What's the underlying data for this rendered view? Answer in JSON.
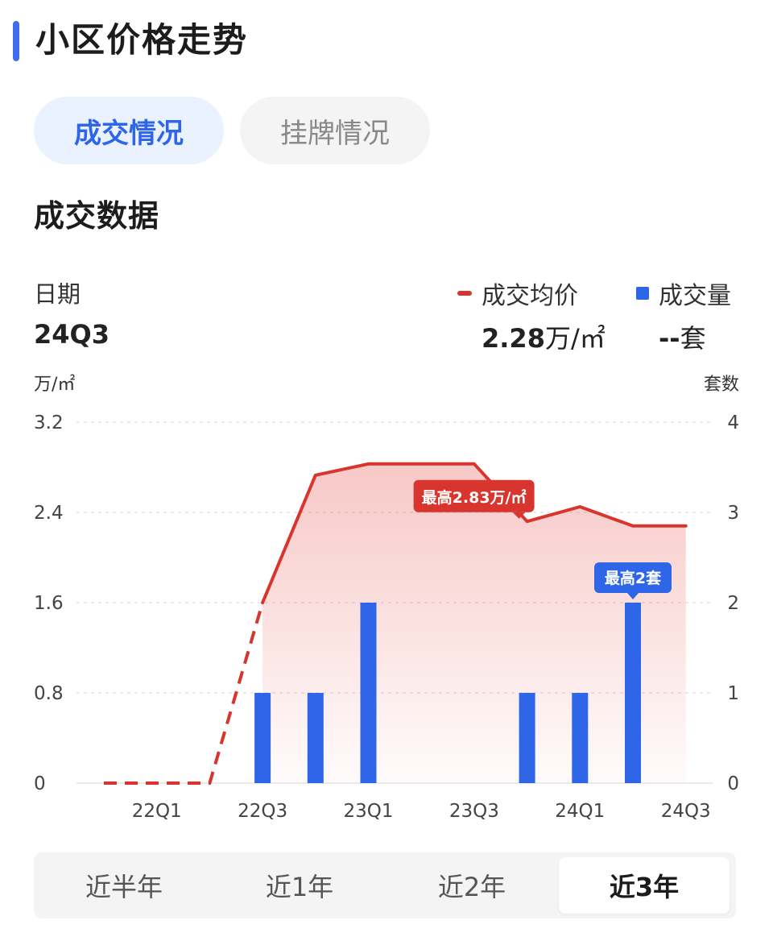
{
  "page_title": "小区价格走势",
  "tabs": [
    {
      "label": "成交情况",
      "active": true
    },
    {
      "label": "挂牌情况",
      "active": false
    }
  ],
  "section_title": "成交数据",
  "summary": {
    "date_label": "日期",
    "date_value": "24Q3",
    "price_legend": "成交均价",
    "volume_legend": "成交量",
    "price_number": "2.28",
    "price_unit": "万/㎡",
    "volume_number": "--",
    "volume_unit": "套"
  },
  "chart_data": {
    "type": "bar+line",
    "left_axis_unit": "万/㎡",
    "right_axis_unit": "套数",
    "left_ticks": [
      "3.2",
      "2.4",
      "1.6",
      "0.8",
      "0"
    ],
    "right_ticks": [
      "4",
      "3",
      "2",
      "1",
      "0"
    ],
    "ylim_left": [
      0,
      3.2
    ],
    "ylim_right": [
      0,
      4
    ],
    "x_ticks": [
      "22Q1",
      "22Q3",
      "23Q1",
      "23Q3",
      "24Q1",
      "24Q3"
    ],
    "quarters": [
      "21Q4",
      "22Q1",
      "22Q2",
      "22Q3",
      "22Q4",
      "23Q1",
      "23Q2",
      "23Q3",
      "23Q4",
      "24Q1",
      "24Q2",
      "24Q3"
    ],
    "price_series": {
      "name": "成交均价",
      "x": [
        "22Q3",
        "22Q4",
        "23Q1",
        "23Q2",
        "23Q3",
        "23Q4",
        "24Q1",
        "24Q2",
        "24Q3"
      ],
      "values": [
        1.6,
        2.73,
        2.83,
        2.83,
        2.83,
        2.32,
        2.45,
        2.28,
        2.28
      ],
      "estimated_segment": {
        "x": [
          "21Q4",
          "22Q1",
          "22Q2",
          "22Q3"
        ],
        "values": [
          0,
          0,
          0,
          1.6
        ]
      }
    },
    "volume_series": {
      "name": "成交量",
      "x": [
        "22Q3",
        "22Q4",
        "23Q1",
        "23Q4",
        "24Q1",
        "24Q2"
      ],
      "values": [
        1,
        1,
        2,
        1,
        1,
        2
      ]
    },
    "max_price_label": "最高2.83万/㎡",
    "max_volume_label": "最高2套",
    "colors": {
      "line": "#d8352e",
      "bar": "#2f66e8",
      "grid": "#dddddd"
    }
  },
  "ranges": [
    {
      "label": "近半年",
      "active": false
    },
    {
      "label": "近1年",
      "active": false
    },
    {
      "label": "近2年",
      "active": false
    },
    {
      "label": "近3年",
      "active": true
    }
  ]
}
